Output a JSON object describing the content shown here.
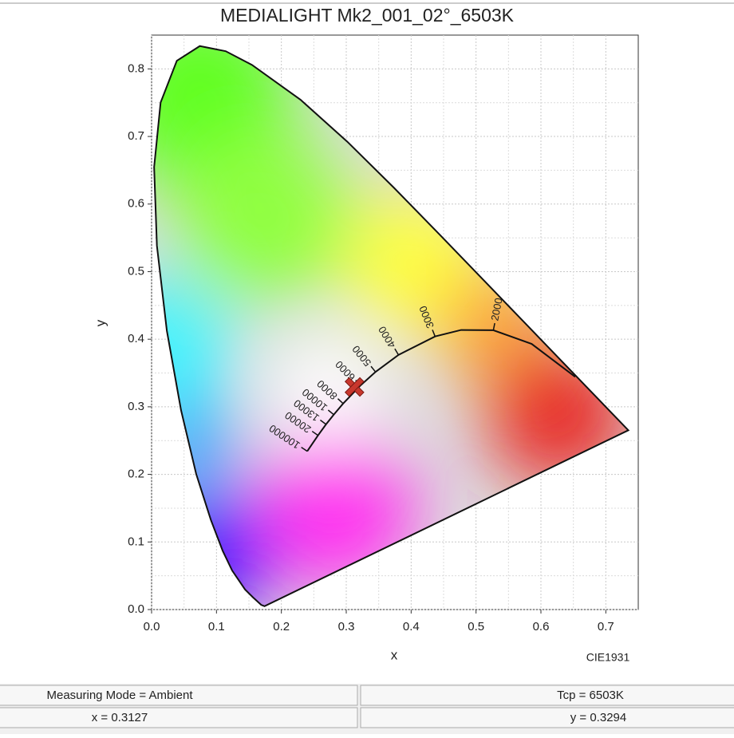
{
  "chart_data": {
    "type": "chromaticity",
    "title": "MEDIALIGHT Mk2_001_02°_6503K",
    "x_label": "x",
    "y_label": "y",
    "corner_label": "CIE1931",
    "xlim": [
      0,
      0.75
    ],
    "ylim": [
      0,
      0.85
    ],
    "xticks": [
      {
        "value": 0,
        "label": "0.0"
      },
      0.1,
      0.2,
      0.3,
      0.4,
      0.5,
      0.6,
      0.7
    ],
    "yticks": [
      {
        "value": 0,
        "label": "0.0"
      },
      0.1,
      0.2,
      0.3,
      0.4,
      0.5,
      0.6,
      0.7,
      0.8
    ],
    "x_minor_grid": [
      0.05,
      0.15,
      0.25,
      0.35,
      0.45,
      0.55,
      0.65
    ],
    "y_minor_grid": [
      0.05,
      0.15,
      0.25,
      0.35,
      0.45,
      0.55,
      0.65,
      0.75
    ],
    "grid": true,
    "spectral_locus": {
      "x": [
        0.1741,
        0.1689,
        0.1566,
        0.144,
        0.1241,
        0.1096,
        0.0913,
        0.0687,
        0.0454,
        0.0235,
        0.0082,
        0.0039,
        0.0139,
        0.0389,
        0.0743,
        0.1142,
        0.1547,
        0.2296,
        0.3016,
        0.3731,
        0.4441,
        0.5125,
        0.5752,
        0.627,
        0.6915,
        0.719,
        0.7347
      ],
      "y": [
        0.005,
        0.0069,
        0.0177,
        0.0297,
        0.0578,
        0.0868,
        0.1327,
        0.2007,
        0.295,
        0.4127,
        0.5384,
        0.6548,
        0.7502,
        0.812,
        0.8338,
        0.8262,
        0.8059,
        0.7543,
        0.6923,
        0.6245,
        0.5547,
        0.4866,
        0.4242,
        0.3725,
        0.3083,
        0.2809,
        0.2653
      ]
    },
    "planckian": {
      "cct": [
        null,
        null,
        2000,
        null,
        3000,
        4000,
        5000,
        6000,
        8000,
        10000,
        13000,
        20000,
        100000
      ],
      "x": [
        0.6528,
        0.5857,
        0.5267,
        0.477,
        0.4369,
        0.3805,
        0.3451,
        0.3221,
        0.2952,
        0.2807,
        0.2688,
        0.2565,
        0.2399
      ],
      "y": [
        0.3444,
        0.3931,
        0.4133,
        0.4137,
        0.4041,
        0.3768,
        0.3516,
        0.3318,
        0.3048,
        0.2884,
        0.274,
        0.2577,
        0.2342
      ]
    },
    "point": {
      "x": 0.3127,
      "y": 0.3294,
      "color": "#c8372d"
    }
  },
  "status": {
    "mode": "Measuring Mode = Ambient",
    "tcp": "Tcp = 6503K",
    "x": "x = 0.3127",
    "y": "y = 0.3294"
  }
}
